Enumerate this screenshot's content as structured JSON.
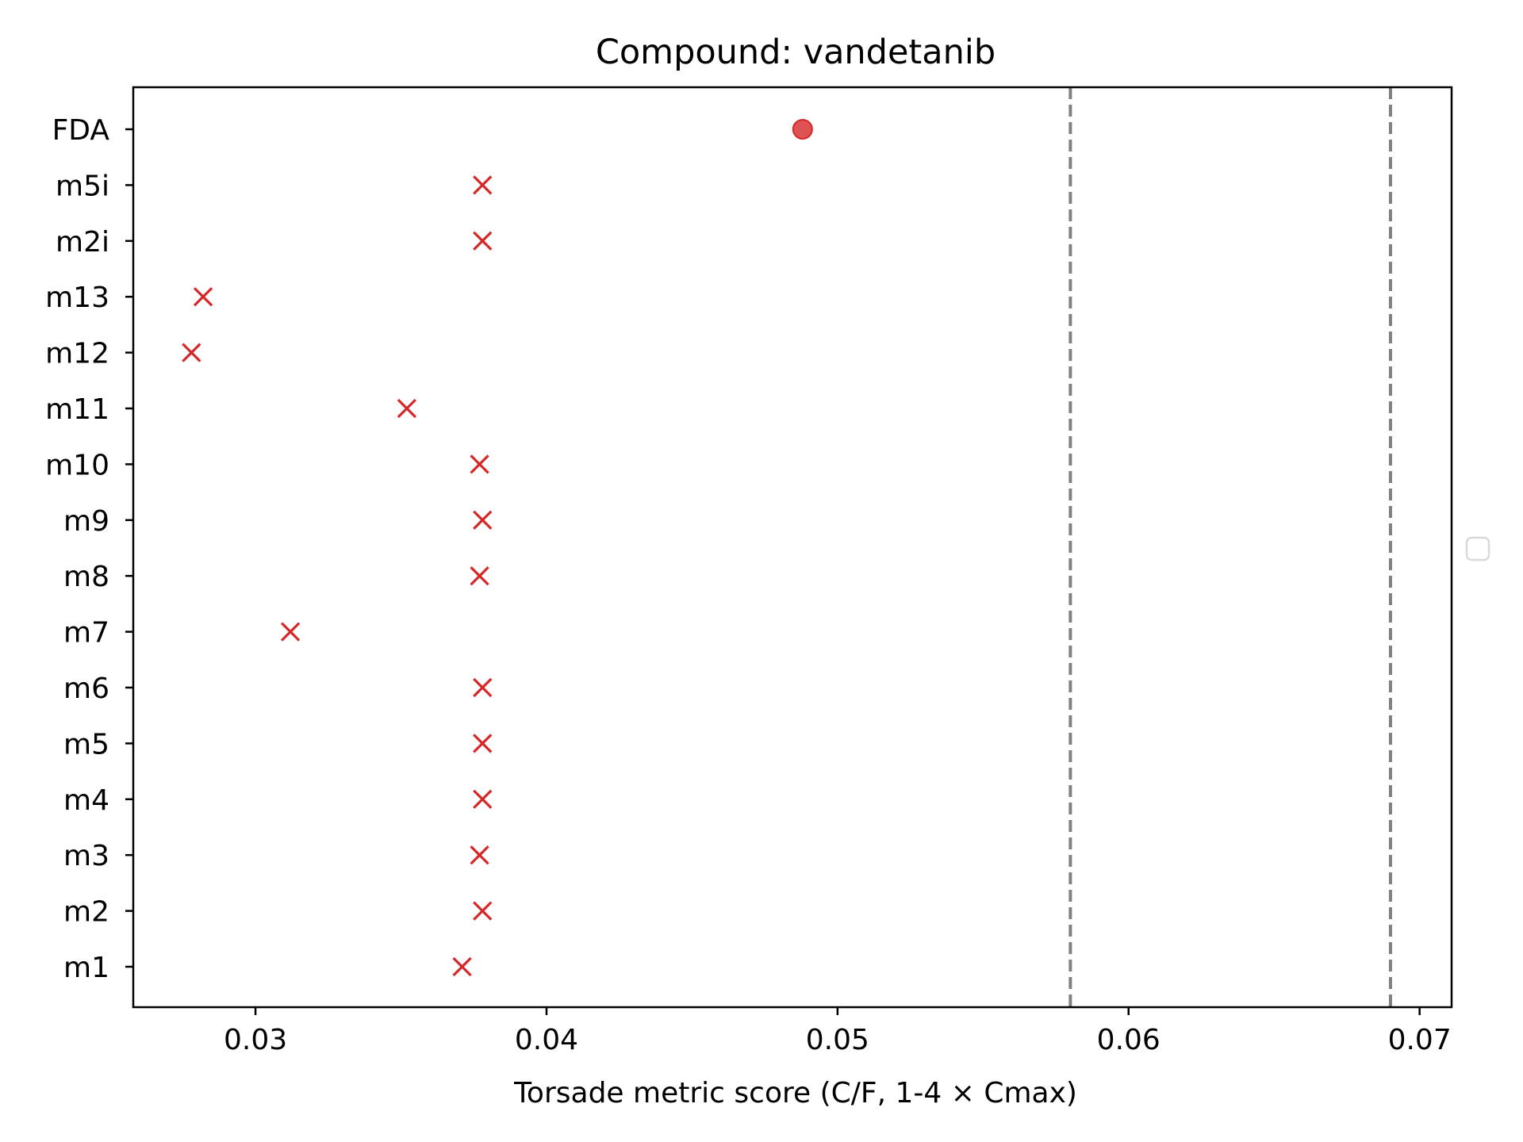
{
  "chart_data": {
    "type": "scatter",
    "title": "Compound: vandetanib",
    "xlabel": "Torsade metric score (C/F, 1-4 × Cmax)",
    "ylabel": "",
    "xlim": [
      0.0258,
      0.0711
    ],
    "x_ticks": [
      0.03,
      0.04,
      0.05,
      0.06,
      0.07
    ],
    "x_tick_labels": [
      "0.03",
      "0.04",
      "0.05",
      "0.06",
      "0.07"
    ],
    "categories": [
      "m1",
      "m2",
      "m3",
      "m4",
      "m5",
      "m6",
      "m7",
      "m8",
      "m9",
      "m10",
      "m11",
      "m12",
      "m13",
      "m2i",
      "m5i",
      "FDA"
    ],
    "series": [
      {
        "marker": "x",
        "color": "#d62728",
        "points": [
          {
            "y": "m1",
            "x": 0.0371
          },
          {
            "y": "m2",
            "x": 0.0378
          },
          {
            "y": "m3",
            "x": 0.0377
          },
          {
            "y": "m4",
            "x": 0.0378
          },
          {
            "y": "m5",
            "x": 0.0378
          },
          {
            "y": "m6",
            "x": 0.0378
          },
          {
            "y": "m7",
            "x": 0.0312
          },
          {
            "y": "m8",
            "x": 0.0377
          },
          {
            "y": "m9",
            "x": 0.0378
          },
          {
            "y": "m10",
            "x": 0.0377
          },
          {
            "y": "m11",
            "x": 0.0352
          },
          {
            "y": "m12",
            "x": 0.0278
          },
          {
            "y": "m13",
            "x": 0.0282
          },
          {
            "y": "m2i",
            "x": 0.0378
          },
          {
            "y": "m5i",
            "x": 0.0378
          }
        ]
      },
      {
        "marker": "o",
        "color": "#d62728",
        "points": [
          {
            "y": "FDA",
            "x": 0.0488
          }
        ]
      }
    ],
    "reference_lines": {
      "orientation": "vertical",
      "style": "dashed",
      "color": "#808080",
      "x": [
        0.058,
        0.069
      ]
    },
    "grid": false,
    "legend": {
      "placement": "center-right",
      "entries": []
    }
  }
}
